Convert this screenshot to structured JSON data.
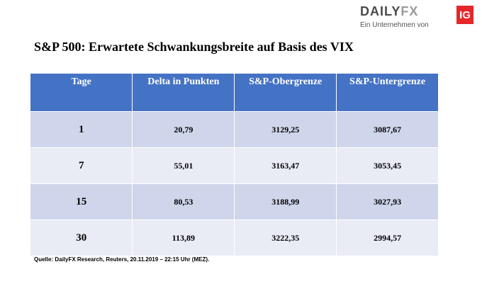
{
  "logo": {
    "word_a": "DAILY",
    "word_b": "FX",
    "badge": "IG",
    "tagline": "Ein Unternehmen von"
  },
  "title": "S&P 500: Erwartete Schwankungsbreite auf Basis des VIX",
  "table": {
    "headers": [
      "Tage",
      "Delta in Punkten",
      "S&P-Obergrenze",
      "S&P-Untergrenze"
    ],
    "rows": [
      [
        "1",
        "20,79",
        "3129,25",
        "3087,67"
      ],
      [
        "7",
        "55,01",
        "3163,47",
        "3053,45"
      ],
      [
        "15",
        "80,53",
        "3188,99",
        "3027,93"
      ],
      [
        "30",
        "113,89",
        "3222,35",
        "2994,57"
      ]
    ]
  },
  "source": "Quelle: DailyFX Research, Reuters, 20.11.2019 – 22:15 Uhr (MEZ)."
}
